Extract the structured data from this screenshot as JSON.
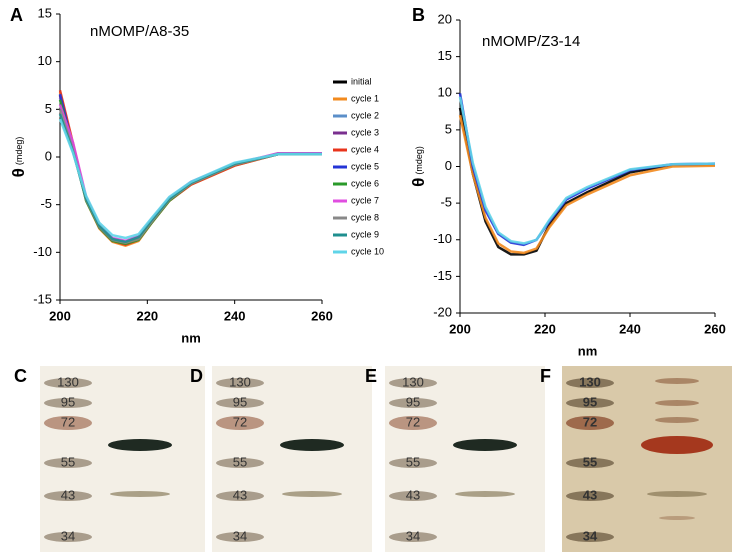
{
  "chart_data": [
    {
      "type": "line",
      "panel": "A",
      "annotation": "nMOMP/A8-35",
      "xlabel": "nm",
      "ylabel": "θ",
      "ylabel_unit": "(mdeg)",
      "x": [
        200,
        203,
        206,
        209,
        212,
        215,
        218,
        221,
        225,
        230,
        240,
        250,
        260
      ],
      "xlim": [
        200,
        260
      ],
      "xticks": [
        200,
        220,
        240,
        260
      ],
      "ylim": [
        -15,
        15
      ],
      "yticks": [
        -15,
        -10,
        -5,
        0,
        5,
        10,
        15
      ],
      "series": [
        {
          "name": "initial",
          "color": "#000000",
          "values": [
            6.5,
            1,
            -4.5,
            -7.3,
            -8.7,
            -9.1,
            -8.6,
            -6.8,
            -4.5,
            -2.8,
            -0.8,
            0.3,
            0.3
          ]
        },
        {
          "name": "cycle 1",
          "color": "#f28a1e",
          "values": [
            6.8,
            1.2,
            -4.6,
            -7.5,
            -8.9,
            -9.3,
            -8.8,
            -6.9,
            -4.6,
            -2.9,
            -0.9,
            0.3,
            0.3
          ]
        },
        {
          "name": "cycle 2",
          "color": "#5b8fc9",
          "values": [
            6.2,
            1,
            -4.3,
            -7.2,
            -8.6,
            -8.9,
            -8.5,
            -6.7,
            -4.4,
            -2.7,
            -0.8,
            0.3,
            0.3
          ]
        },
        {
          "name": "cycle 3",
          "color": "#7a2f8f",
          "values": [
            6.4,
            1.1,
            -4.5,
            -7.4,
            -8.8,
            -9,
            -8.6,
            -6.8,
            -4.5,
            -2.8,
            -0.8,
            0.4,
            0.4
          ]
        },
        {
          "name": "cycle 4",
          "color": "#e8341c",
          "values": [
            7,
            1.4,
            -4.4,
            -7.3,
            -8.8,
            -9.2,
            -8.7,
            -6.9,
            -4.6,
            -2.9,
            -0.9,
            0.3,
            0.3
          ]
        },
        {
          "name": "cycle 5",
          "color": "#2434d6",
          "values": [
            6.6,
            1,
            -4.4,
            -7.2,
            -8.6,
            -8.9,
            -8.4,
            -6.6,
            -4.4,
            -2.7,
            -0.7,
            0.3,
            0.4
          ]
        },
        {
          "name": "cycle 6",
          "color": "#2a9a2a",
          "values": [
            6,
            0.8,
            -4.6,
            -7.4,
            -8.8,
            -9.1,
            -8.7,
            -6.9,
            -4.6,
            -2.8,
            -0.8,
            0.3,
            0.3
          ]
        },
        {
          "name": "cycle 7",
          "color": "#e04ee0",
          "values": [
            5.5,
            1.5,
            -4.2,
            -7.1,
            -8.5,
            -8.8,
            -8.3,
            -6.5,
            -4.3,
            -2.6,
            -0.7,
            0.4,
            0.4
          ]
        },
        {
          "name": "cycle 8",
          "color": "#888888",
          "values": [
            5,
            0.6,
            -4.5,
            -7.3,
            -8.7,
            -9,
            -8.6,
            -6.8,
            -4.5,
            -2.8,
            -0.8,
            0.3,
            0.3
          ]
        },
        {
          "name": "cycle 9",
          "color": "#1f8f8f",
          "values": [
            4.5,
            0.5,
            -4.4,
            -7.2,
            -8.6,
            -8.9,
            -8.4,
            -6.6,
            -4.4,
            -2.7,
            -0.7,
            0.3,
            0.3
          ]
        },
        {
          "name": "cycle 10",
          "color": "#5fd4e8",
          "values": [
            4,
            0.4,
            -4.1,
            -6.9,
            -8.2,
            -8.5,
            -8.1,
            -6.4,
            -4.2,
            -2.6,
            -0.6,
            0.3,
            0.3
          ]
        }
      ]
    },
    {
      "type": "line",
      "panel": "B",
      "annotation": "nMOMP/Z3-14",
      "xlabel": "nm",
      "ylabel": "θ",
      "ylabel_unit": "(mdeg)",
      "x": [
        200,
        203,
        206,
        209,
        212,
        215,
        218,
        221,
        225,
        230,
        240,
        250,
        260
      ],
      "xlim": [
        200,
        260
      ],
      "xticks": [
        200,
        220,
        240,
        260
      ],
      "ylim": [
        -20,
        20
      ],
      "yticks": [
        -20,
        -15,
        -10,
        -5,
        0,
        5,
        10,
        15,
        20
      ],
      "series": [
        {
          "color": "#000000",
          "values": [
            8,
            -1,
            -7.5,
            -11,
            -12,
            -12,
            -11.5,
            -8,
            -5,
            -3.5,
            -0.8,
            0.2,
            0.3
          ]
        },
        {
          "color": "#f28a1e",
          "values": [
            7,
            -1,
            -7,
            -10.5,
            -11.6,
            -11.8,
            -11.2,
            -8.3,
            -5.3,
            -3.8,
            -1.2,
            0,
            0.1
          ]
        },
        {
          "color": "#2434d6",
          "values": [
            10,
            0,
            -6,
            -9.2,
            -10.4,
            -10.7,
            -10,
            -7.5,
            -4.5,
            -3,
            -0.5,
            0.3,
            0.4
          ]
        },
        {
          "color": "#5fd4e8",
          "values": [
            9.5,
            0.5,
            -5.5,
            -9,
            -10.2,
            -10.5,
            -10,
            -7.3,
            -4.3,
            -2.8,
            -0.4,
            0.3,
            0.4
          ]
        }
      ]
    }
  ],
  "gels": [
    {
      "label": "C",
      "markers": [
        "130",
        "95",
        "72",
        "55",
        "43",
        "34"
      ]
    },
    {
      "label": "D",
      "markers": [
        "130",
        "95",
        "72",
        "55",
        "43",
        "34"
      ]
    },
    {
      "label": "E",
      "markers": [
        "130",
        "95",
        "72",
        "55",
        "43",
        "34"
      ]
    },
    {
      "label": "F",
      "markers": [
        "130",
        "95",
        "72",
        "55",
        "43",
        "34"
      ]
    }
  ]
}
